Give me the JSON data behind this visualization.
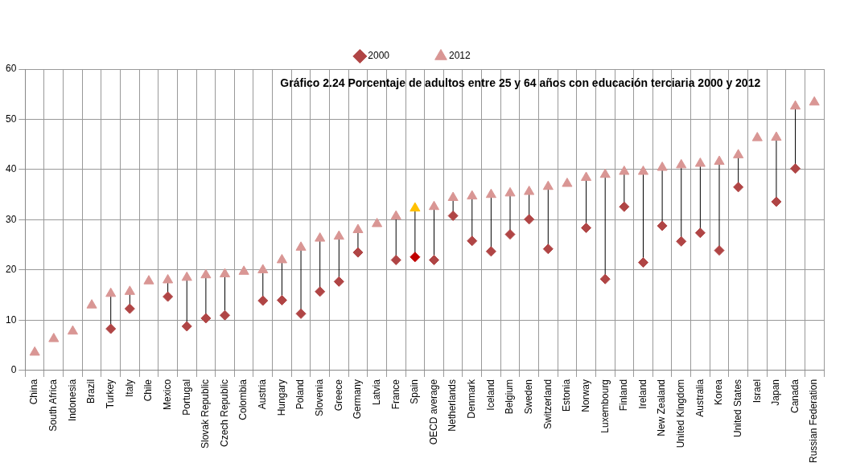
{
  "chart_data": {
    "type": "scatter",
    "title": "Gráfico 2.24 Porcentaje de adultos entre 25 y 64 años con educación terciaria 2000 y 2012",
    "categories": [
      "China",
      "South Africa",
      "Indonesia",
      "Brazil",
      "Turkey",
      "Italy",
      "Chile",
      "Mexico",
      "Portugal",
      "Slovak Republic",
      "Czech Republic",
      "Colombia",
      "Austria",
      "Hungary",
      "Poland",
      "Slovenia",
      "Greece",
      "Germany",
      "Latvia",
      "France",
      "Spain",
      "OECD average",
      "Netherlands",
      "Denmark",
      "Iceland",
      "Belgium",
      "Sweden",
      "Switzerland",
      "Estonia",
      "Norway",
      "Luxembourg",
      "Finland",
      "Ireland",
      "New Zealand",
      "United Kingdom",
      "Australia",
      "Korea",
      "United States",
      "Israel",
      "Japan",
      "Canada",
      "Russian Federation"
    ],
    "series": [
      {
        "name": "2000",
        "color": "#b04545",
        "marker": "diamond",
        "colors": [
          "#b04545",
          "#b04545",
          "#b04545",
          "#b04545",
          "#b04545",
          "#b04545",
          "#b04545",
          "#b04545",
          "#b04545",
          "#b04545",
          "#b04545",
          "#b04545",
          "#b04545",
          "#b04545",
          "#b04545",
          "#b04545",
          "#b04545",
          "#b04545",
          "#b04545",
          "#b04545",
          "#c00000",
          "#b04545",
          "#b04545",
          "#b04545",
          "#b04545",
          "#b04545",
          "#b04545",
          "#b04545",
          "#b04545",
          "#b04545",
          "#b04545",
          "#b04545",
          "#b04545",
          "#b04545",
          "#b04545",
          "#b04545",
          "#b04545",
          "#b04545",
          "#b04545",
          "#b04545",
          "#b04545",
          "#b04545"
        ],
        "values": [
          null,
          null,
          null,
          null,
          8.3,
          12.3,
          null,
          14.7,
          8.8,
          10.4,
          11,
          null,
          13.9,
          14,
          11.3,
          15.7,
          17.7,
          23.5,
          null,
          22,
          22.6,
          22,
          30.8,
          25.8,
          23.7,
          27.1,
          30.1,
          24.2,
          null,
          28.4,
          18.2,
          32.6,
          21.5,
          28.8,
          25.7,
          27.4,
          23.9,
          36.5,
          null,
          33.6,
          40.2,
          null
        ]
      },
      {
        "name": "2012",
        "color": "#d99694",
        "marker": "triangle",
        "colors": [
          "#d99694",
          "#d99694",
          "#d99694",
          "#d99694",
          "#d99694",
          "#d99694",
          "#d99694",
          "#d99694",
          "#d99694",
          "#d99694",
          "#d99694",
          "#d99694",
          "#d99694",
          "#d99694",
          "#d99694",
          "#d99694",
          "#d99694",
          "#d99694",
          "#d99694",
          "#d99694",
          "#ffc000",
          "#d99694",
          "#d99694",
          "#d99694",
          "#d99694",
          "#d99694",
          "#d99694",
          "#d99694",
          "#d99694",
          "#d99694",
          "#d99694",
          "#d99694",
          "#d99694",
          "#d99694",
          "#d99694",
          "#d99694",
          "#d99694",
          "#d99694",
          "#d99694",
          "#d99694",
          "#d99694",
          "#d99694"
        ],
        "values": [
          3.6,
          6.3,
          7.8,
          13,
          15.3,
          15.7,
          17.8,
          18,
          18.5,
          19,
          19.2,
          19.7,
          20,
          22,
          24.5,
          26.3,
          26.7,
          28,
          29.2,
          30.7,
          32.3,
          32.6,
          34.4,
          34.7,
          35,
          35.3,
          35.6,
          36.6,
          37.2,
          38.4,
          39,
          39.6,
          39.6,
          40.4,
          40.9,
          41.2,
          41.6,
          42.9,
          46.3,
          46.4,
          52.6,
          53.4
        ]
      }
    ],
    "ylim": [
      0,
      60
    ],
    "yticks": [
      0,
      10,
      20,
      30,
      40,
      50,
      60
    ],
    "grid": true,
    "legend": "top"
  }
}
